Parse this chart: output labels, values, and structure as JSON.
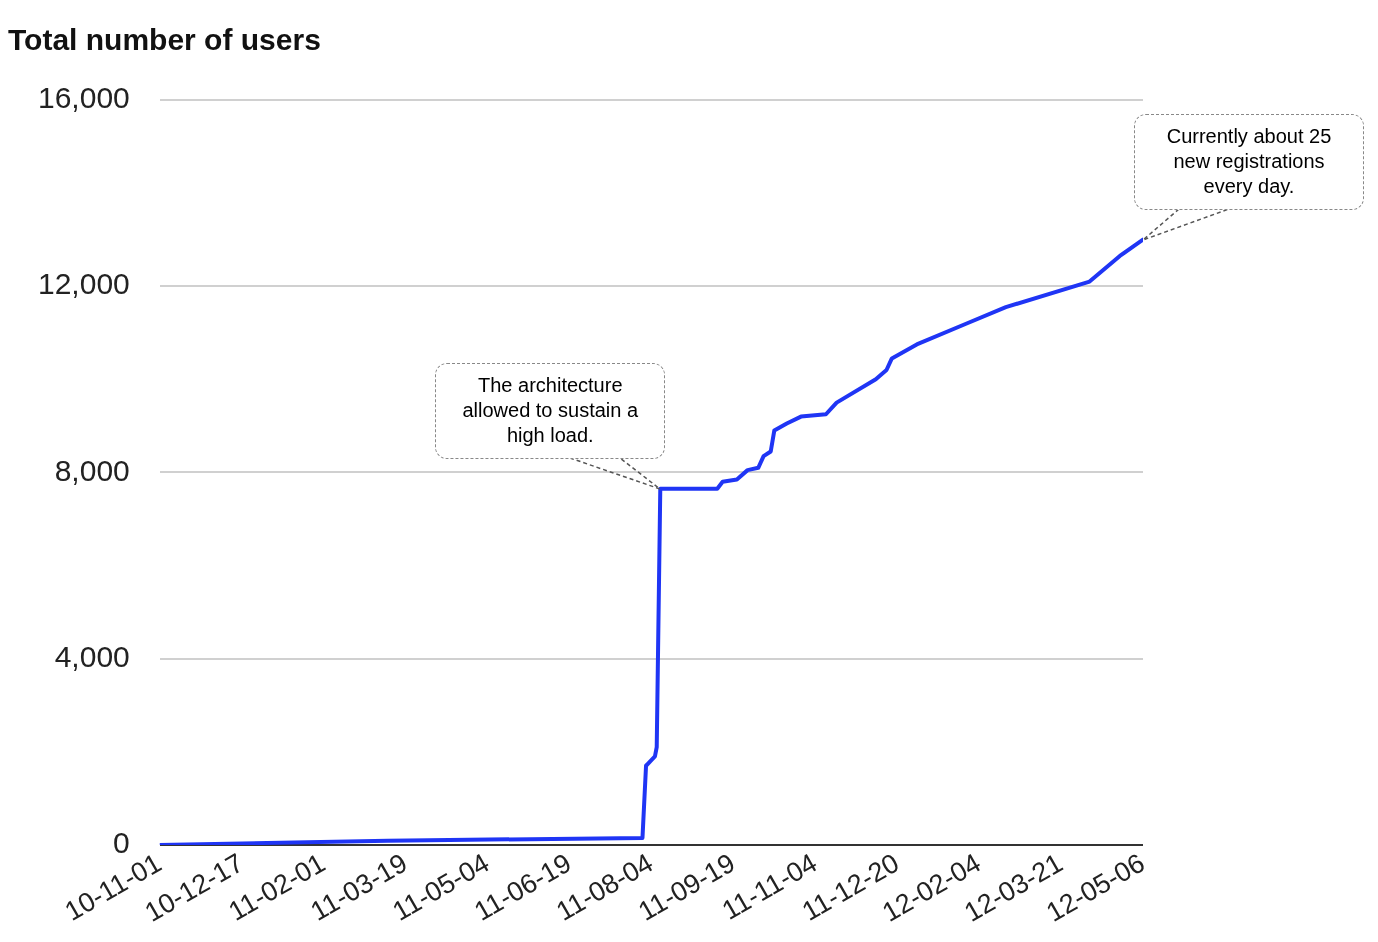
{
  "chart_data": {
    "type": "line",
    "title": "Total number of users",
    "x": [
      "2010-11-01",
      "2011-03-09",
      "2011-04-01",
      "2011-07-30",
      "2011-08-01",
      "2011-08-06",
      "2011-08-07",
      "2011-08-09",
      "2011-09-10",
      "2011-09-13",
      "2011-09-21",
      "2011-09-27",
      "2011-10-03",
      "2011-10-06",
      "2011-10-10",
      "2011-10-12",
      "2011-10-19",
      "2011-10-27",
      "2011-11-10",
      "2011-11-16",
      "2011-12-08",
      "2011-12-14",
      "2011-12-17",
      "2011-12-31",
      "2012-01-28",
      "2012-02-19",
      "2012-04-06",
      "2012-04-23",
      "2012-05-06"
    ],
    "series": [
      {
        "color": "#1f35f5",
        "values": [
          0,
          90,
          100,
          150,
          1700,
          1900,
          2100,
          7650,
          7650,
          7800,
          7850,
          8050,
          8100,
          8350,
          8450,
          8900,
          9050,
          9200,
          9250,
          9500,
          10000,
          10200,
          10450,
          10750,
          11200,
          11550,
          12100,
          12650,
          13000
        ]
      }
    ],
    "xlim": [
      "2010-11-01",
      "2012-05-06"
    ],
    "xticks": [
      {
        "value": "2010-11-01",
        "label": "10-11-01"
      },
      {
        "value": "2010-12-17",
        "label": "10-12-17"
      },
      {
        "value": "2011-02-01",
        "label": "11-02-01"
      },
      {
        "value": "2011-03-19",
        "label": "11-03-19"
      },
      {
        "value": "2011-05-04",
        "label": "11-05-04"
      },
      {
        "value": "2011-06-19",
        "label": "11-06-19"
      },
      {
        "value": "2011-08-04",
        "label": "11-08-04"
      },
      {
        "value": "2011-09-19",
        "label": "11-09-19"
      },
      {
        "value": "2011-11-04",
        "label": "11-11-04"
      },
      {
        "value": "2011-12-20",
        "label": "11-12-20"
      },
      {
        "value": "2012-02-04",
        "label": "12-02-04"
      },
      {
        "value": "2012-03-21",
        "label": "12-03-21"
      },
      {
        "value": "2012-05-06",
        "label": "12-05-06"
      }
    ],
    "ylim": [
      0,
      16000
    ],
    "yticks": [
      0,
      {
        "value": 4000,
        "label": "4,000"
      },
      {
        "value": 8000,
        "label": "8,000"
      },
      {
        "value": 12000,
        "label": "12,000"
      },
      {
        "value": 16000,
        "label": "16,000"
      }
    ],
    "grid": "y",
    "legend": false,
    "marker": "none",
    "line_style": "solid",
    "annotations": [
      {
        "text": "The architecture allowed to sustain a high load.",
        "x": "2011-08-09",
        "y": 7650
      },
      {
        "text": "Currently about 25 new registrations every day.",
        "x": "2012-05-06",
        "y": 13000
      }
    ]
  }
}
